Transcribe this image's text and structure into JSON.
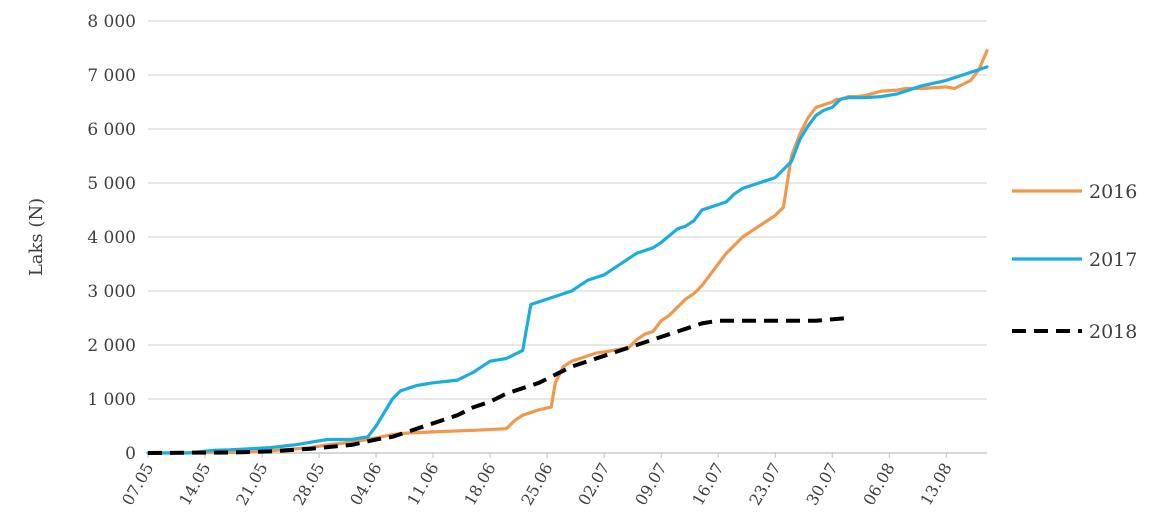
{
  "chart_data": {
    "type": "line",
    "title": "",
    "xlabel": "",
    "ylabel": "Laks (N)",
    "ylim": [
      0,
      8000
    ],
    "yticks": [
      0,
      1000,
      2000,
      3000,
      4000,
      5000,
      6000,
      7000,
      8000
    ],
    "ytick_labels": [
      "0",
      "1 000",
      "2 000",
      "3 000",
      "4 000",
      "5 000",
      "6 000",
      "7 000",
      "8 000"
    ],
    "xlim_day": [
      0,
      103
    ],
    "xtick_labels": [
      "07.05",
      "14.05",
      "21.05",
      "28.05",
      "04.06",
      "11.06",
      "18.06",
      "25.06",
      "02.07",
      "09.07",
      "16.07",
      "23.07",
      "30.07",
      "06.08",
      "13.08"
    ],
    "grid": "horizontal",
    "legend_position": "right",
    "x_note": "x values are days after 07.05",
    "series": [
      {
        "name": "2016",
        "color": "#F0994D",
        "dash": "solid",
        "x": [
          0,
          5,
          10,
          15,
          20,
          22,
          25,
          27,
          28,
          30,
          32,
          35,
          40,
          44,
          45,
          46,
          48,
          49.5,
          50,
          51,
          52,
          53,
          55,
          56,
          59,
          60,
          61,
          62,
          63,
          64,
          65,
          66,
          67,
          68,
          69,
          70,
          71,
          72,
          73,
          74,
          75,
          76,
          77,
          78,
          79,
          80,
          81,
          82,
          83,
          84,
          84.5,
          85,
          86,
          87,
          88,
          90,
          92,
          93,
          95,
          98,
          99,
          101,
          102,
          103
        ],
        "y": [
          0,
          5,
          10,
          40,
          100,
          150,
          200,
          250,
          280,
          340,
          370,
          390,
          420,
          450,
          600,
          700,
          800,
          850,
          1300,
          1600,
          1700,
          1750,
          1850,
          1870,
          1950,
          2100,
          2200,
          2250,
          2450,
          2550,
          2700,
          2850,
          2950,
          3100,
          3300,
          3500,
          3700,
          3850,
          4000,
          4100,
          4200,
          4300,
          4400,
          4550,
          5500,
          5900,
          6200,
          6400,
          6450,
          6500,
          6550,
          6550,
          6600,
          6600,
          6620,
          6700,
          6720,
          6750,
          6750,
          6780,
          6750,
          6900,
          7100,
          7450
        ]
      },
      {
        "name": "2017",
        "color": "#1BADE0",
        "dash": "solid",
        "x": [
          0,
          5,
          8,
          10,
          15,
          18,
          20,
          22,
          25,
          27,
          28,
          30,
          31,
          32,
          33,
          35,
          38,
          40,
          42,
          44,
          46,
          47,
          48,
          49,
          50,
          52,
          53,
          54,
          55,
          56,
          57,
          59,
          60,
          61,
          62,
          63,
          65,
          66,
          67,
          68,
          69,
          70,
          71,
          72,
          73,
          75,
          76,
          77,
          78,
          79,
          80,
          81,
          82,
          83,
          84,
          85,
          86,
          87,
          88,
          90,
          92,
          95,
          98,
          100,
          102,
          103
        ],
        "y": [
          0,
          0,
          50,
          60,
          100,
          150,
          200,
          250,
          250,
          300,
          500,
          1000,
          1150,
          1200,
          1250,
          1300,
          1350,
          1500,
          1700,
          1750,
          1900,
          2750,
          2800,
          2850,
          2900,
          3000,
          3100,
          3200,
          3250,
          3300,
          3400,
          3600,
          3700,
          3750,
          3800,
          3900,
          4150,
          4200,
          4300,
          4500,
          4550,
          4600,
          4650,
          4800,
          4900,
          5000,
          5050,
          5100,
          5250,
          5400,
          5800,
          6050,
          6250,
          6350,
          6400,
          6550,
          6580,
          6580,
          6580,
          6600,
          6650,
          6800,
          6900,
          7000,
          7100,
          7150
        ]
      },
      {
        "name": "2018",
        "color": "#000000",
        "dash": "dashed",
        "x": [
          0,
          5,
          10,
          15,
          20,
          25,
          28,
          30,
          32,
          35,
          38,
          40,
          42,
          44,
          46,
          48,
          50,
          52,
          54,
          56,
          58,
          60,
          62,
          64,
          66,
          68,
          70,
          72,
          74,
          76,
          78,
          80,
          82,
          86
        ],
        "y": [
          0,
          5,
          10,
          30,
          80,
          150,
          250,
          300,
          400,
          550,
          700,
          850,
          950,
          1100,
          1200,
          1300,
          1450,
          1600,
          1700,
          1800,
          1900,
          2000,
          2100,
          2200,
          2300,
          2400,
          2450,
          2450,
          2450,
          2450,
          2450,
          2450,
          2450,
          2500
        ]
      }
    ]
  }
}
